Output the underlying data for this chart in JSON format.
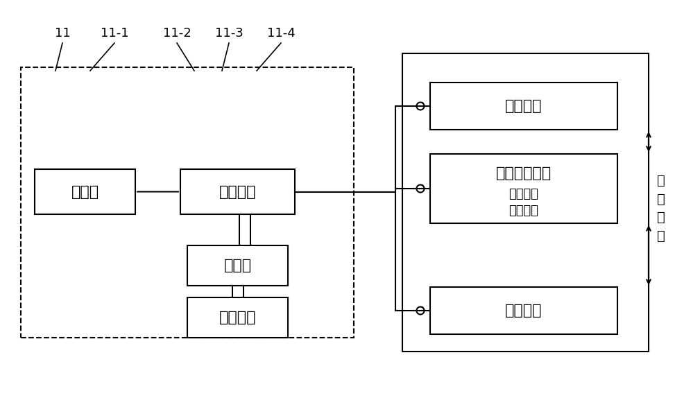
{
  "bg_color": "#ffffff",
  "line_color": "#000000",
  "font_color": "#000000",
  "labels": {
    "engine": "发动机",
    "coupling": "耦合装置",
    "motor": "电动机",
    "battery": "动力电池",
    "hydraulic": "液压传动",
    "hydro_mech": "液压机械传动",
    "input_split": "输入分流",
    "output_split": "输出分流",
    "mechanical": "机械传动",
    "parasitic": "寄\n生\n功\n率"
  },
  "ref_labels": {
    "11": "11",
    "11-1": "11-1",
    "11-2": "11-2",
    "11-3": "11-3",
    "11-4": "11-4"
  }
}
